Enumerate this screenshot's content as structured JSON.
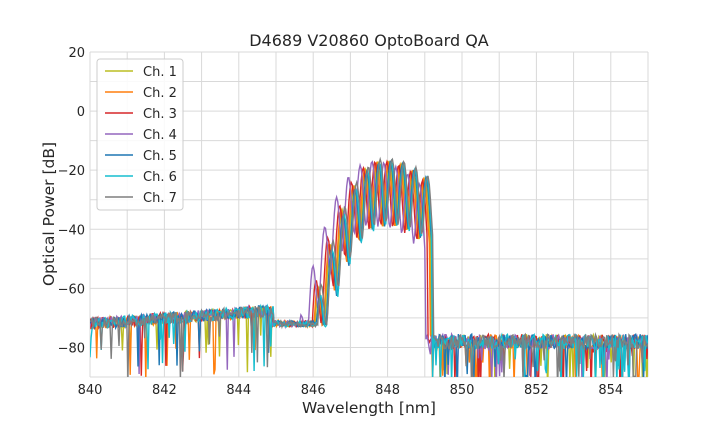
{
  "chart_data": {
    "type": "line",
    "title": "D4689 V20860 OptoBoard QA",
    "xlabel": "Wavelength [nm]",
    "ylabel": "Optical Power [dB]",
    "xlim": [
      840,
      855
    ],
    "ylim": [
      -90,
      20
    ],
    "xticks": [
      840,
      842,
      844,
      846,
      848,
      850,
      852,
      854
    ],
    "yticks": [
      20,
      0,
      -20,
      -40,
      -60,
      -80
    ],
    "grid": true,
    "legend_position": "top-left",
    "series": [
      {
        "name": "Ch. 1",
        "color": "#bcbd22",
        "center": 847.85,
        "offset": 0.05,
        "peak": -17
      },
      {
        "name": "Ch. 2",
        "color": "#ff7f0e",
        "center": 847.85,
        "offset": 0.02,
        "peak": -17
      },
      {
        "name": "Ch. 3",
        "color": "#d62728",
        "center": 847.8,
        "offset": -0.02,
        "peak": -17
      },
      {
        "name": "Ch. 4",
        "color": "#9467bd",
        "center": 847.7,
        "offset": -0.1,
        "peak": -17
      },
      {
        "name": "Ch. 5",
        "color": "#1f77b4",
        "center": 847.9,
        "offset": 0.08,
        "peak": -17
      },
      {
        "name": "Ch. 6",
        "color": "#17becf",
        "center": 847.9,
        "offset": 0.1,
        "peak": -17
      },
      {
        "name": "Ch. 7",
        "color": "#7f7f7f",
        "center": 847.85,
        "offset": 0.12,
        "peak": -16
      }
    ]
  }
}
